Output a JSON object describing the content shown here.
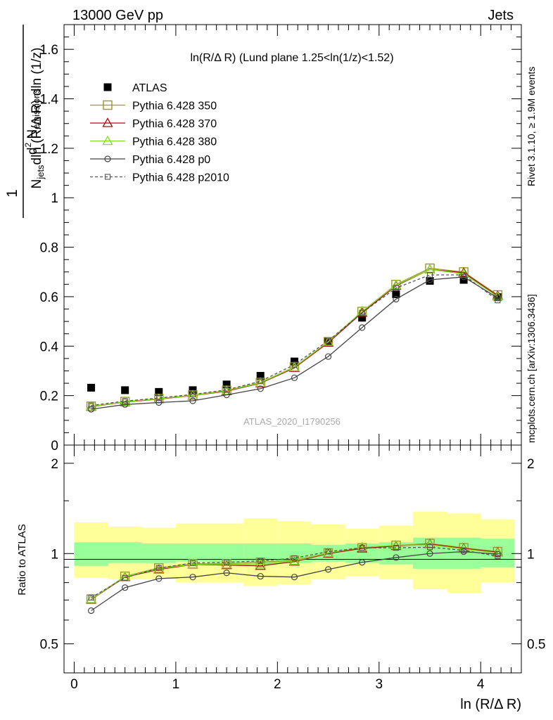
{
  "header": {
    "left": "13000 GeV pp",
    "right": "Jets"
  },
  "side_labels": {
    "rivet": "Rivet 3.1.10, ≥ 1.9M events",
    "mcplots": "mcplots.cern.ch [arXiv:1306.3436]"
  },
  "colors": {
    "atlas": "#000000",
    "p350": "#9a9a22",
    "p370": "#a01010",
    "p380": "#88dd22",
    "p0": "#444444",
    "p2010": "#555555",
    "band_inner": "#99ff99",
    "band_outer": "#ffff99"
  },
  "chart_data": [
    {
      "type": "scatter",
      "title": "ln(R/Δ R) (Lund plane 1.25<ln(1/z)<1.52)",
      "watermark": "ATLAS_2020_I1790256",
      "ylabel": {
        "frac_num": "1",
        "frac_den_a": "N",
        "frac_den_sub": "jets",
        "frac_den_b": "dln (R/Δ R) dln (1/z)",
        "num_pre": "d",
        "num_sup": "2",
        "num_mid": " N",
        "num_sub": "emissions"
      },
      "xlim": [
        -0.1,
        4.4
      ],
      "ylim": [
        0,
        1.7
      ],
      "yticks": [
        "0",
        "0.2",
        "0.4",
        "0.6",
        "0.8",
        "1",
        "1.2",
        "1.4",
        "1.6"
      ],
      "x": [
        0.167,
        0.5,
        0.833,
        1.167,
        1.5,
        1.833,
        2.167,
        2.5,
        2.833,
        3.167,
        3.5,
        3.833,
        4.167
      ],
      "series": [
        {
          "name": "ATLAS",
          "key": "atlas",
          "values": [
            0.232,
            0.222,
            0.215,
            0.222,
            0.245,
            0.28,
            0.338,
            0.418,
            0.515,
            0.61,
            0.664,
            0.668,
            0.598
          ]
        },
        {
          "name": "Pythia 6.428 350",
          "key": "p350",
          "values": [
            0.157,
            0.176,
            0.188,
            0.202,
            0.221,
            0.253,
            0.316,
            0.418,
            0.54,
            0.649,
            0.715,
            0.7,
            0.607
          ]
        },
        {
          "name": "Pythia 6.428 370",
          "key": "p370",
          "values": [
            0.155,
            0.174,
            0.186,
            0.2,
            0.218,
            0.25,
            0.312,
            0.414,
            0.535,
            0.644,
            0.71,
            0.697,
            0.604
          ]
        },
        {
          "name": "Pythia 6.428 380",
          "key": "p380",
          "values": [
            0.156,
            0.175,
            0.187,
            0.201,
            0.22,
            0.252,
            0.315,
            0.418,
            0.541,
            0.647,
            0.71,
            0.692,
            0.6
          ]
        },
        {
          "name": "Pythia 6.428 p0",
          "key": "p0",
          "values": [
            0.145,
            0.164,
            0.172,
            0.179,
            0.203,
            0.228,
            0.272,
            0.358,
            0.475,
            0.59,
            0.668,
            0.68,
            0.595
          ]
        },
        {
          "name": "Pythia 6.428 p2010",
          "key": "p2010",
          "values": [
            0.16,
            0.178,
            0.19,
            0.205,
            0.223,
            0.258,
            0.325,
            0.422,
            0.535,
            0.635,
            0.688,
            0.688,
            0.585
          ]
        }
      ]
    },
    {
      "type": "scatter",
      "ylabel": "Ratio to ATLAS",
      "xlabel": "ln (R/Δ R)",
      "xlim": [
        -0.1,
        4.4
      ],
      "ylim": [
        0.4,
        2.3
      ],
      "xticks": [
        "0",
        "1",
        "2",
        "3",
        "4"
      ],
      "yticks": [
        "0.5",
        "1",
        "2"
      ],
      "bin_edges": [
        0,
        0.333,
        0.667,
        1,
        1.333,
        1.667,
        2,
        2.333,
        2.667,
        3,
        3.333,
        3.667,
        4,
        4.333
      ],
      "band_inner": [
        [
          0.91,
          1.09
        ],
        [
          0.93,
          1.09
        ],
        [
          0.93,
          1.08
        ],
        [
          0.94,
          1.08
        ],
        [
          0.93,
          1.08
        ],
        [
          0.92,
          1.08
        ],
        [
          0.93,
          1.08
        ],
        [
          0.94,
          1.07
        ],
        [
          0.93,
          1.08
        ],
        [
          0.92,
          1.09
        ],
        [
          0.89,
          1.13
        ],
        [
          0.89,
          1.13
        ],
        [
          0.9,
          1.12
        ]
      ],
      "band_outer": [
        [
          0.83,
          1.27
        ],
        [
          0.82,
          1.23
        ],
        [
          0.82,
          1.22
        ],
        [
          0.8,
          1.26
        ],
        [
          0.8,
          1.26
        ],
        [
          0.78,
          1.31
        ],
        [
          0.79,
          1.28
        ],
        [
          0.82,
          1.25
        ],
        [
          0.84,
          1.21
        ],
        [
          0.82,
          1.24
        ],
        [
          0.76,
          1.38
        ],
        [
          0.74,
          1.36
        ],
        [
          0.8,
          1.3
        ]
      ],
      "series": [
        {
          "name": "Pythia 6.428 350",
          "key": "p350",
          "values": [
            0.705,
            0.84,
            0.895,
            0.925,
            0.925,
            0.935,
            0.95,
            1.005,
            1.045,
            1.065,
            1.08,
            1.045,
            1.015
          ]
        },
        {
          "name": "Pythia 6.428 370",
          "key": "p370",
          "values": [
            0.703,
            0.835,
            0.885,
            0.92,
            0.915,
            0.91,
            0.94,
            1.0,
            1.04,
            1.06,
            1.075,
            1.04,
            1.01
          ]
        },
        {
          "name": "Pythia 6.428 380",
          "key": "p380",
          "values": [
            0.705,
            0.838,
            0.89,
            0.922,
            0.92,
            0.92,
            0.945,
            1.005,
            1.05,
            1.065,
            1.07,
            1.035,
            1.005
          ]
        },
        {
          "name": "Pythia 6.428 p0",
          "key": "p0",
          "values": [
            0.645,
            0.77,
            0.825,
            0.835,
            0.862,
            0.84,
            0.835,
            0.885,
            0.935,
            0.97,
            1.0,
            1.015,
            0.995
          ]
        },
        {
          "name": "Pythia 6.428 p2010",
          "key": "p2010",
          "values": [
            0.713,
            0.83,
            0.895,
            0.93,
            0.935,
            0.945,
            0.965,
            1.015,
            1.045,
            1.045,
            1.05,
            1.025,
            0.98
          ]
        }
      ]
    }
  ]
}
